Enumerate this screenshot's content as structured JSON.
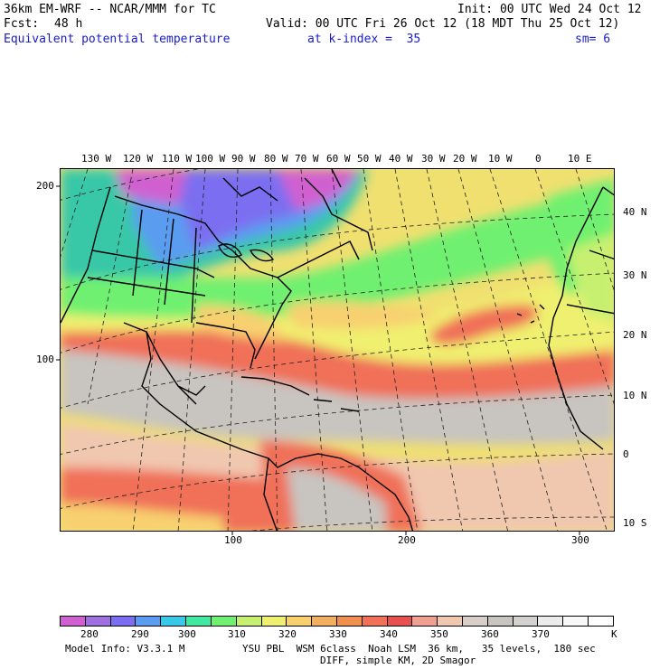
{
  "header": {
    "model_line": "36km EM-WRF -- NCAR/MMM for TC",
    "init_line": "Init: 00 UTC Wed 24 Oct 12",
    "fcst_label": "Fcst:",
    "fcst_value": "48 h",
    "valid_line": "Valid: 00 UTC Fri 26 Oct 12 (18 MDT Thu 25 Oct 12)",
    "field_name": "Equivalent potential temperature",
    "level": "at k-index =  35",
    "smoothing": "sm= 6"
  },
  "map": {
    "top_longitude_labels": [
      "130 W",
      "120 W",
      "110 W",
      "100 W",
      "90 W",
      "80 W",
      "70 W",
      "60 W",
      "50 W",
      "40 W",
      "30 W",
      "20 W",
      "10 W",
      "0",
      "10 E"
    ],
    "right_latitude_labels": [
      "40 N",
      "30 N",
      "20 N",
      "10 N",
      "0",
      "10 S"
    ],
    "left_grid_labels": [
      "200",
      "100"
    ],
    "bottom_grid_labels": [
      "100",
      "200",
      "300"
    ]
  },
  "colorbar": {
    "colors": [
      "#d060d0",
      "#a070e0",
      "#7c6ef0",
      "#5a9cf0",
      "#38c8e8",
      "#40e8a0",
      "#70f070",
      "#c8f070",
      "#f0f070",
      "#f8d070",
      "#f0b060",
      "#f09050",
      "#f07058",
      "#e85050",
      "#f0a090",
      "#f0c8b0",
      "#d8d0c8",
      "#c8c4c0",
      "#d4d2d0",
      "#ececec",
      "#f8f8f8",
      "#ffffff"
    ],
    "labels": [
      "280",
      "290",
      "300",
      "310",
      "320",
      "330",
      "340",
      "350",
      "360",
      "370"
    ],
    "unit": "K"
  },
  "footer": {
    "model_info": "Model Info: V3.3.1 M",
    "physics_line1": "YSU PBL  WSM 6class  Noah LSM  36 km,   35 levels,  180 sec",
    "physics_line2": "DIFF, simple KM, 2D Smagor"
  }
}
